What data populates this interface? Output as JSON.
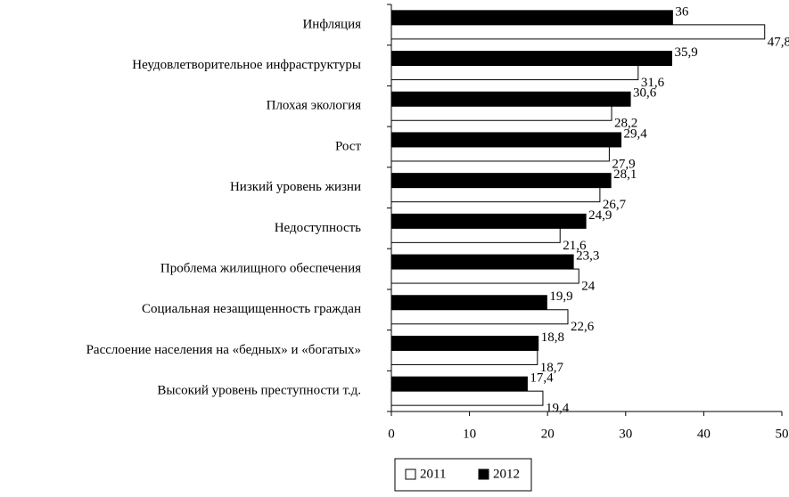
{
  "chart_data": {
    "type": "hbar",
    "categories": [
      "Инфляция",
      "Неудовлетворительное инфраструктуры",
      "Плохая экология",
      "Рост",
      "Низкий уровень жизни",
      "Недоступность",
      "Проблема жилищного обеспечения",
      "Социальная незащищенность граждан",
      "Расслоение населения на «бедных» и «богатых»",
      "Высокий уровень преступности т.д."
    ],
    "series": [
      {
        "name": "2012",
        "color": "#000000",
        "values": [
          36,
          35.9,
          30.6,
          29.4,
          28.1,
          24.9,
          23.3,
          19.9,
          18.8,
          17.4
        ],
        "value_labels": [
          "36",
          "35,9",
          "30,6",
          "29,4",
          "28,1",
          "24,9",
          "23,3",
          "19,9",
          "18,8",
          "17,4"
        ]
      },
      {
        "name": "2011",
        "color": "#ffffff",
        "values": [
          47.8,
          31.6,
          28.2,
          27.9,
          26.7,
          21.6,
          24,
          22.6,
          18.7,
          19.4
        ],
        "value_labels": [
          "47,8",
          "31,6",
          "28,2",
          "27,9",
          "26,7",
          "21,6",
          "24",
          "22,6",
          "18,7",
          "19,4"
        ]
      }
    ],
    "xlim": [
      0,
      50
    ],
    "xticks": [
      0,
      10,
      20,
      30,
      40,
      50
    ]
  }
}
